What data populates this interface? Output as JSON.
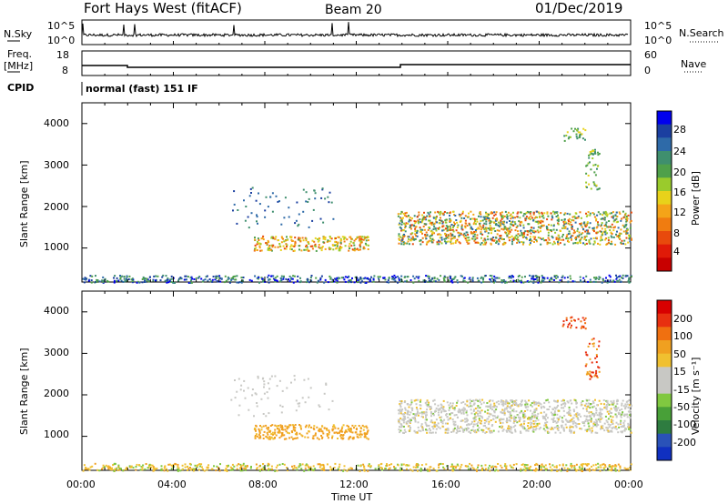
{
  "header": {
    "station": "Fort Hays West (fitACF)",
    "beam": "Beam 20",
    "date": "01/Dec/2019"
  },
  "strips": {
    "nsky_label": "N.Sky",
    "nsky_ticks": [
      "10^5",
      "10^0"
    ],
    "nsearch_label": "N.Search",
    "nsearch_ticks": [
      "10^5",
      "10^0"
    ],
    "freq_label_1": "Freq.",
    "freq_label_2": "[MHz]",
    "freq_ticks": [
      "18",
      "8"
    ],
    "nave_label": "Nave",
    "nave_ticks": [
      "60",
      "0"
    ],
    "cpid_label": "CPID",
    "cpid_text": "normal (fast) 151 IF"
  },
  "chart_data": [
    {
      "type": "heatmap",
      "name": "power",
      "ylabel": "Slant Range [km]",
      "yticks": [
        "4000",
        "3000",
        "2000",
        "1000"
      ],
      "ylim": [
        180,
        4500
      ],
      "xlim": [
        0,
        24
      ],
      "colorbar_label": "Power [dB]",
      "colorbar_ticks": [
        "28",
        "24",
        "20",
        "16",
        "12",
        "8",
        "4"
      ],
      "colorbar_colors": [
        "#0000ee",
        "#1b3fa0",
        "#2e6aa8",
        "#3f8f6e",
        "#4fa04a",
        "#9acb2c",
        "#e8d21a",
        "#f4a418",
        "#f07c10",
        "#e84a0c",
        "#e01a08",
        "#c80000"
      ]
    },
    {
      "type": "heatmap",
      "name": "velocity",
      "ylabel": "Slant Range [km]",
      "yticks": [
        "4000",
        "3000",
        "2000",
        "1000"
      ],
      "ylim": [
        180,
        4500
      ],
      "xlim": [
        0,
        24
      ],
      "colorbar_label": "Velocity [m s⁻¹]",
      "colorbar_ticks": [
        "200",
        "100",
        "50",
        "15",
        "-15",
        "-50",
        "-100",
        "-200"
      ],
      "colorbar_colors": [
        "#1030c0",
        "#2a52b8",
        "#2e7c40",
        "#48a038",
        "#80c840",
        "#c8c8c4",
        "#c8c8c4",
        "#f0c030",
        "#f0a020",
        "#f07010",
        "#e83010",
        "#d80000"
      ]
    }
  ],
  "xaxis": {
    "ticks": [
      "00:00",
      "04:00",
      "08:00",
      "12:00",
      "16:00",
      "20:00",
      "00:00"
    ],
    "label": "Time UT"
  }
}
